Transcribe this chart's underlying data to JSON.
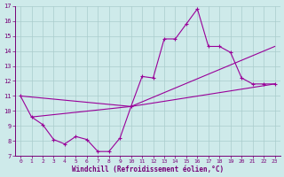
{
  "xlabel": "Windchill (Refroidissement éolien,°C)",
  "bg_color": "#ceeaea",
  "grid_color": "#aacccc",
  "line_color": "#990099",
  "xlim": [
    -0.5,
    23.5
  ],
  "ylim": [
    7,
    17
  ],
  "xticks": [
    0,
    1,
    2,
    3,
    4,
    5,
    6,
    7,
    8,
    9,
    10,
    11,
    12,
    13,
    14,
    15,
    16,
    17,
    18,
    19,
    20,
    21,
    22,
    23
  ],
  "yticks": [
    7,
    8,
    9,
    10,
    11,
    12,
    13,
    14,
    15,
    16,
    17
  ],
  "curve1_x": [
    0,
    1,
    2,
    3,
    4,
    5,
    6,
    7,
    8,
    9,
    10,
    11,
    12,
    13,
    14,
    15,
    16,
    17,
    18,
    19,
    20,
    21,
    22,
    23
  ],
  "curve1_y": [
    11.0,
    9.6,
    9.1,
    8.1,
    7.8,
    8.3,
    8.1,
    7.3,
    7.3,
    8.2,
    10.3,
    12.3,
    12.2,
    14.8,
    14.8,
    15.8,
    16.8,
    14.3,
    14.3,
    13.9,
    12.2,
    11.8,
    11.8,
    11.8
  ],
  "curve2_x": [
    0,
    10,
    23
  ],
  "curve2_y": [
    11.0,
    10.3,
    11.8
  ],
  "curve3_x": [
    1,
    10,
    23
  ],
  "curve3_y": [
    9.6,
    10.3,
    14.3
  ]
}
